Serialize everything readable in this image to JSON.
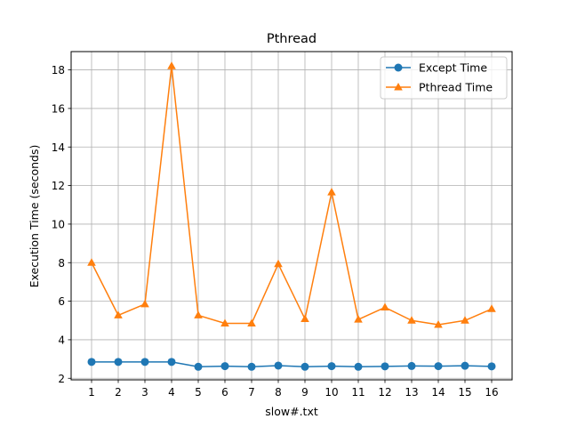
{
  "chart_data": {
    "type": "line",
    "title": "Pthread",
    "xlabel": "slow#.txt",
    "ylabel": "Execution Time (seconds)",
    "categories": [
      "1",
      "2",
      "3",
      "4",
      "5",
      "6",
      "7",
      "8",
      "9",
      "10",
      "11",
      "12",
      "13",
      "14",
      "15",
      "16"
    ],
    "ylim": [
      1.92,
      18.95
    ],
    "yticks": [
      2,
      4,
      6,
      8,
      10,
      12,
      14,
      16,
      18
    ],
    "grid": true,
    "legend_position": "top-right",
    "series": [
      {
        "name": "Except Time",
        "color": "#1f77b4",
        "marker": "circle",
        "values": [
          2.85,
          2.85,
          2.85,
          2.85,
          2.6,
          2.63,
          2.6,
          2.66,
          2.6,
          2.63,
          2.6,
          2.62,
          2.64,
          2.63,
          2.65,
          2.62
        ]
      },
      {
        "name": "Pthread Time",
        "color": "#ff7f0e",
        "marker": "triangle",
        "values": [
          8.0,
          5.27,
          5.85,
          18.2,
          5.27,
          4.85,
          4.85,
          7.93,
          5.08,
          11.65,
          5.05,
          5.68,
          5.0,
          4.78,
          5.0,
          5.6
        ]
      }
    ]
  }
}
